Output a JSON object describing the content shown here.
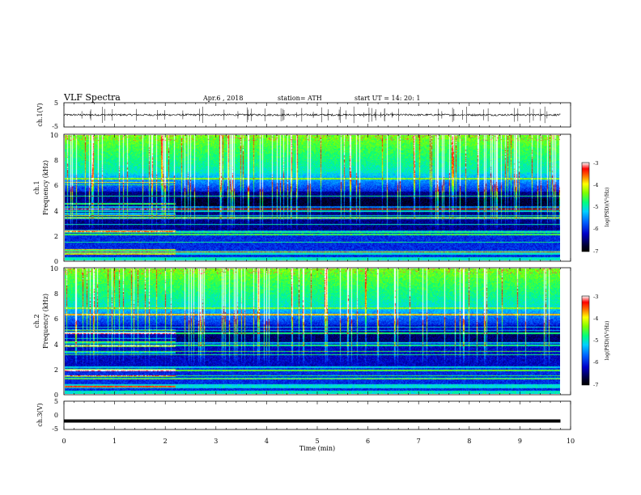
{
  "header": {
    "title": "VLF  Spectra",
    "date": "Apr.6   , 2018",
    "station": "station= ATH",
    "start_ut": "start  UT  =     14: 20: 1"
  },
  "chart_data": [
    {
      "type": "line",
      "name": "ch1-waveform",
      "ylabel": "ch.1(V)",
      "ylim": [
        -5,
        5
      ],
      "y_ticks": [
        "5",
        "-5"
      ],
      "xlim": [
        0,
        10
      ],
      "baseline": 0.0,
      "noise_level": 0.4
    },
    {
      "type": "heatmap",
      "name": "ch1-spectrogram",
      "ylabel": "Frequency  (kHz)",
      "channel_label": "ch.1",
      "ylim": [
        0,
        10
      ],
      "y_ticks": [
        "0",
        "2",
        "4",
        "6",
        "8",
        "10"
      ],
      "xlim": [
        0,
        9.8
      ],
      "colorbar": {
        "label": "log(PSD)(V²/Hz)",
        "range": [
          -7,
          -3
        ],
        "ticks": [
          "-3",
          "-4",
          "-5",
          "-6",
          "-7"
        ]
      },
      "band_shift_time_min": 2.2
    },
    {
      "type": "heatmap",
      "name": "ch2-spectrogram",
      "ylabel": "Frequency  (kHz)",
      "channel_label": "ch.2",
      "ylim": [
        0,
        10
      ],
      "y_ticks": [
        "0",
        "2",
        "4",
        "6",
        "8",
        "10"
      ],
      "xlim": [
        0,
        9.8
      ],
      "colorbar": {
        "label": "log(PSD)(V²/Hz)",
        "range": [
          -7,
          -3
        ],
        "ticks": [
          "-3",
          "-4",
          "-5",
          "-6",
          "-7"
        ]
      },
      "band_shift_time_min": 2.2
    },
    {
      "type": "line",
      "name": "ch3-waveform",
      "ylabel": "ch.3(V)",
      "ylim": [
        -5,
        5
      ],
      "y_ticks": [
        "5",
        "0",
        "-5"
      ],
      "xlim": [
        0,
        10
      ],
      "baseline": -2.0
    }
  ],
  "x_axis": {
    "label": "Time  (min)",
    "range": [
      0,
      10
    ],
    "ticks": [
      "0",
      "1",
      "2",
      "3",
      "4",
      "5",
      "6",
      "7",
      "8",
      "9",
      "10"
    ]
  },
  "colors": {
    "plot_frame": "#000000",
    "background": "#ffffff"
  }
}
